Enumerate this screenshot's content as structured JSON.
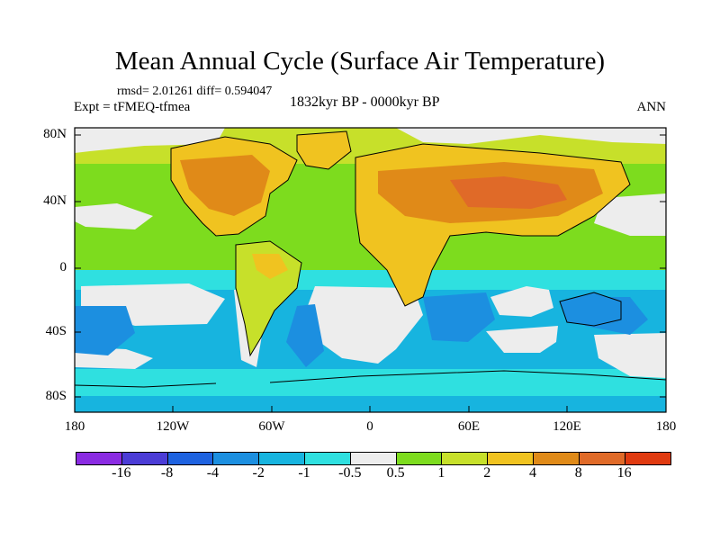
{
  "header": {
    "title": "Mean Annual Cycle (Surface Air Temperature)",
    "stats": "rmsd= 2.01261 diff= 0.594047",
    "experiment": "Expt = tFMEQ-tfmea",
    "period": "1832kyr BP - 0000kyr BP",
    "season": "ANN"
  },
  "axes": {
    "y_labels": [
      "80N",
      "40N",
      "0",
      "40S",
      "80S"
    ],
    "x_labels": [
      "180",
      "120W",
      "60W",
      "0",
      "60E",
      "120E",
      "180"
    ]
  },
  "colorbar": {
    "colors": [
      "#8a2be2",
      "#4b3cd6",
      "#1e62e0",
      "#1c8fe0",
      "#17b4df",
      "#2fe0e0",
      "#ededed",
      "#7ddc1e",
      "#c7e02a",
      "#f0c320",
      "#e08a18",
      "#e06a28",
      "#e03a10"
    ],
    "labels": [
      "-16",
      "-8",
      "-4",
      "-2",
      "-1",
      "-0.5",
      "0.5",
      "1",
      "2",
      "4",
      "8",
      "16"
    ]
  }
}
